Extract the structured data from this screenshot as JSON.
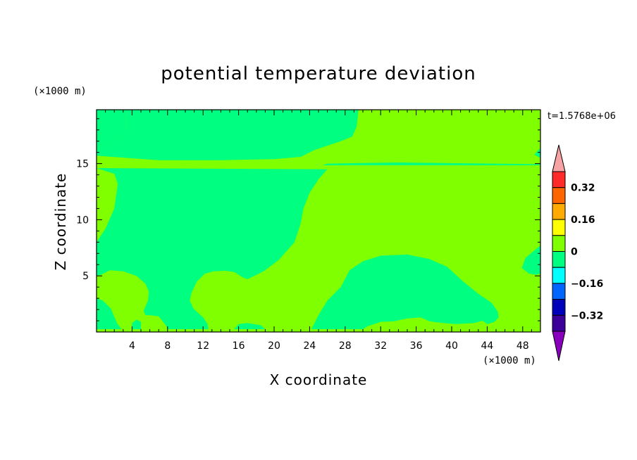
{
  "chart_data": {
    "type": "heatmap",
    "title": "potential temperature deviation",
    "xlabel": "X coordinate",
    "ylabel": "Z coordinate",
    "x_unit": "(×1000 m)",
    "y_unit": "(×1000 m)",
    "time_label": "t=1.5768e+06",
    "xlim": [
      0,
      50
    ],
    "ylim": [
      0,
      19.8
    ],
    "x_ticks": [
      4,
      8,
      12,
      16,
      20,
      24,
      28,
      32,
      36,
      40,
      44,
      48
    ],
    "y_ticks": [
      5,
      10,
      15
    ],
    "colors": {
      "above_0": "#80ff00",
      "below_0": "#00ff80"
    },
    "regions": [
      {
        "name": "negative-upper",
        "level": "below_0",
        "polygon": [
          [
            0,
            19.8
          ],
          [
            3.4,
            19.8
          ],
          [
            3.4,
            18.2
          ],
          [
            2.8,
            17.3
          ],
          [
            0,
            16.2
          ]
        ]
      },
      {
        "name": "negative-upper-mid",
        "level": "below_0",
        "polygon": [
          [
            3.4,
            19.8
          ],
          [
            29.5,
            19.8
          ],
          [
            29.3,
            18.3
          ],
          [
            28.8,
            17.4
          ],
          [
            27.5,
            17.0
          ],
          [
            24.5,
            16.2
          ],
          [
            23,
            15.6
          ],
          [
            20,
            15.4
          ],
          [
            14,
            15.3
          ],
          [
            7,
            15.3
          ],
          [
            3.5,
            15.5
          ],
          [
            0,
            15.7
          ],
          [
            0,
            16.2
          ],
          [
            2.8,
            17.3
          ],
          [
            3.4,
            18.2
          ]
        ]
      },
      {
        "name": "negative-left-main",
        "level": "below_0",
        "polygon": [
          [
            0,
            14.6
          ],
          [
            26,
            14.5
          ],
          [
            25,
            13.6
          ],
          [
            24,
            12.4
          ],
          [
            23.3,
            11.0
          ],
          [
            23.0,
            9.7
          ],
          [
            22.3,
            8.0
          ],
          [
            20.5,
            6.4
          ],
          [
            18.8,
            5.4
          ],
          [
            17,
            4.7
          ],
          [
            16.5,
            4.85
          ],
          [
            15.5,
            5.35
          ],
          [
            14.5,
            5.45
          ],
          [
            13.2,
            5.4
          ],
          [
            12.2,
            5.2
          ],
          [
            11.3,
            4.5
          ],
          [
            10.7,
            3.5
          ],
          [
            10.5,
            2.8
          ],
          [
            10.9,
            2.1
          ],
          [
            12.0,
            1.3
          ],
          [
            12.5,
            0.7
          ],
          [
            12.6,
            0.25
          ],
          [
            8,
            0.25
          ],
          [
            7.8,
            0.6
          ],
          [
            7.0,
            1.4
          ],
          [
            6.0,
            1.5
          ],
          [
            5.5,
            1.5
          ],
          [
            5.3,
            1.9
          ],
          [
            5.8,
            2.8
          ],
          [
            5.9,
            3.6
          ],
          [
            5.5,
            4.3
          ],
          [
            4.5,
            5.0
          ],
          [
            3.0,
            5.4
          ],
          [
            1.5,
            5.5
          ],
          [
            0.5,
            5.1
          ],
          [
            0,
            5.0
          ],
          [
            0,
            8.0
          ],
          [
            1.0,
            9.2
          ],
          [
            2.0,
            11.0
          ],
          [
            2.4,
            13.2
          ],
          [
            2.0,
            14.1
          ]
        ]
      },
      {
        "name": "negative-left-lower",
        "level": "below_0",
        "polygon": [
          [
            0,
            3.0
          ],
          [
            0.7,
            2.8
          ],
          [
            1.6,
            2.1
          ],
          [
            2.3,
            0.8
          ],
          [
            2.8,
            0.25
          ],
          [
            0,
            0.25
          ]
        ]
      },
      {
        "name": "negative-bottom-strip-1",
        "level": "below_0",
        "polygon": [
          [
            4.0,
            0.25
          ],
          [
            5.0,
            0.25
          ],
          [
            5.0,
            0.9
          ],
          [
            4.5,
            1.1
          ],
          [
            4.0,
            0.8
          ]
        ]
      },
      {
        "name": "negative-bottom-strip-2",
        "level": "below_0",
        "polygon": [
          [
            15.5,
            0.25
          ],
          [
            19,
            0.25
          ],
          [
            18.5,
            0.6
          ],
          [
            17,
            0.8
          ],
          [
            16,
            0.7
          ]
        ]
      },
      {
        "name": "negative-right-main",
        "level": "below_0",
        "polygon": [
          [
            24.2,
            0.25
          ],
          [
            25,
            1.5
          ],
          [
            26,
            2.8
          ],
          [
            27.5,
            4.0
          ],
          [
            28.5,
            5.5
          ],
          [
            30,
            6.3
          ],
          [
            32,
            6.8
          ],
          [
            35,
            6.9
          ],
          [
            37.5,
            6.5
          ],
          [
            39.5,
            5.8
          ],
          [
            41.3,
            4.5
          ],
          [
            43,
            3.4
          ],
          [
            44.5,
            2.6
          ],
          [
            45.2,
            1.8
          ],
          [
            45.3,
            1.3
          ],
          [
            44.8,
            0.9
          ],
          [
            44,
            0.7
          ],
          [
            43.5,
            1.0
          ],
          [
            42.5,
            0.8
          ],
          [
            40.5,
            0.7
          ],
          [
            39,
            0.8
          ],
          [
            37.5,
            0.95
          ],
          [
            36.5,
            1.3
          ],
          [
            35.0,
            1.2
          ],
          [
            33.5,
            0.95
          ],
          [
            32,
            0.9
          ],
          [
            30.5,
            0.5
          ],
          [
            30,
            0.25
          ]
        ]
      },
      {
        "name": "negative-right-edge",
        "level": "below_0",
        "polygon": [
          [
            50,
            7.7
          ],
          [
            49.2,
            7.2
          ],
          [
            48.3,
            6.6
          ],
          [
            47.9,
            5.7
          ],
          [
            48.7,
            5.2
          ],
          [
            49.5,
            5.1
          ],
          [
            50,
            5.2
          ]
        ]
      },
      {
        "name": "negative-upper-right-tip",
        "level": "below_0",
        "polygon": [
          [
            50,
            16.4
          ],
          [
            49.3,
            15.8
          ],
          [
            50,
            15.5
          ]
        ]
      },
      {
        "name": "negative-thin-band",
        "level": "below_0",
        "polygon": [
          [
            25.5,
            14.85
          ],
          [
            50,
            14.85
          ],
          [
            50,
            14.95
          ],
          [
            34,
            15.1
          ],
          [
            26,
            15.0
          ]
        ]
      }
    ],
    "colorbar": {
      "ticks": [
        0.32,
        0.16,
        0,
        -0.16,
        -0.32
      ],
      "tick_labels": [
        "0.32",
        "0.16",
        "0",
        "−0.16",
        "−0.32"
      ],
      "levels": [
        {
          "lo": 0.4,
          "hi": 0.48,
          "color": "#f7a3a3",
          "kind": "arrow-top"
        },
        {
          "lo": 0.32,
          "hi": 0.4,
          "color": "#ff2a2a"
        },
        {
          "lo": 0.24,
          "hi": 0.32,
          "color": "#ff6600"
        },
        {
          "lo": 0.16,
          "hi": 0.24,
          "color": "#ffaa00"
        },
        {
          "lo": 0.08,
          "hi": 0.16,
          "color": "#ffff00"
        },
        {
          "lo": 0.0,
          "hi": 0.08,
          "color": "#80ff00"
        },
        {
          "lo": -0.08,
          "hi": 0.0,
          "color": "#00ff80"
        },
        {
          "lo": -0.16,
          "hi": -0.08,
          "color": "#00ffff"
        },
        {
          "lo": -0.24,
          "hi": -0.16,
          "color": "#0066ff"
        },
        {
          "lo": -0.32,
          "hi": -0.24,
          "color": "#0000bb"
        },
        {
          "lo": -0.4,
          "hi": -0.32,
          "color": "#3a0099"
        },
        {
          "lo": -0.48,
          "hi": -0.4,
          "color": "#8800bb",
          "kind": "arrow-bottom"
        }
      ]
    }
  }
}
